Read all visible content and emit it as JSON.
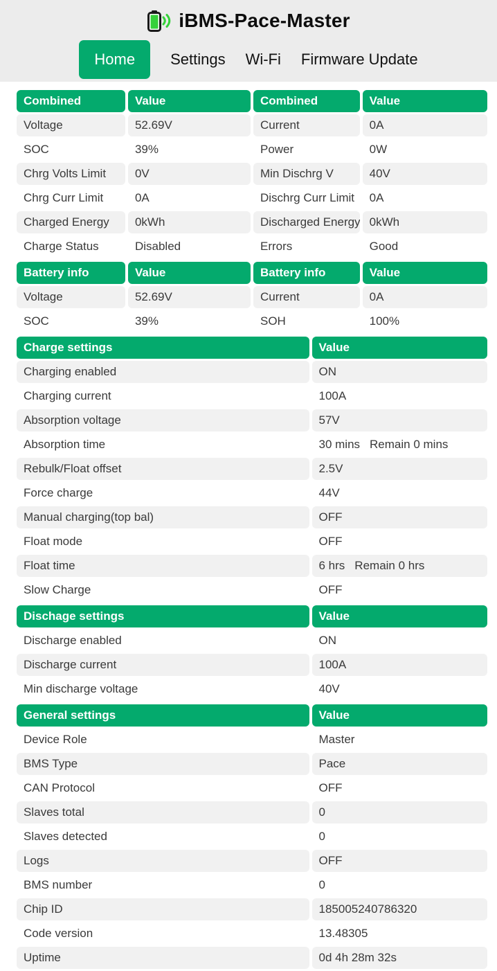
{
  "header": {
    "title": "iBMS-Pace-Master",
    "nav": [
      {
        "label": "Home",
        "active": true
      },
      {
        "label": "Settings",
        "active": false
      },
      {
        "label": "Wi-Fi",
        "active": false
      },
      {
        "label": "Firmware Update",
        "active": false
      }
    ]
  },
  "colors": {
    "accent_green": "#04aa6d",
    "good_text_green": "#1d9e3d",
    "header_background": "#ececec",
    "row_stripe_gray": "#f1f1f1",
    "battery_icon_green": "#35d13a"
  },
  "tables": [
    {
      "type": "four-col",
      "stripe_start": "gray",
      "headers": [
        "Combined",
        "Value",
        "Combined",
        "Value"
      ],
      "rows": [
        {
          "label1": "Voltage",
          "value1": "52.69V",
          "label2": "Current",
          "value2": "0A"
        },
        {
          "label1": "SOC",
          "value1": "39%",
          "label2": "Power",
          "value2": "0W"
        },
        {
          "label1": "Chrg Volts Limit",
          "value1": "0V",
          "label2": "Min Dischrg V",
          "value2": "40V"
        },
        {
          "label1": "Chrg Curr Limit",
          "value1": "0A",
          "label2": "Dischrg Curr Limit",
          "value2": "0A"
        },
        {
          "label1": "Charged Energy",
          "value1": "0kWh",
          "label2": "Discharged Energy",
          "value2": "0kWh"
        },
        {
          "label1": "Charge Status",
          "value1": "Disabled",
          "label2": "Errors",
          "value2": "Good",
          "value2_color": "good"
        }
      ]
    },
    {
      "type": "four-col",
      "stripe_start": "gray",
      "headers": [
        "Battery info",
        "Value",
        "Battery info",
        "Value"
      ],
      "rows": [
        {
          "label1": "Voltage",
          "value1": "52.69V",
          "label2": "Current",
          "value2": "0A"
        },
        {
          "label1": "SOC",
          "value1": "39%",
          "label2": "SOH",
          "value2": "100%"
        }
      ]
    },
    {
      "type": "two-col",
      "stripe_start": "gray",
      "headers": [
        "Charge settings",
        "Value"
      ],
      "rows": [
        {
          "label": "Charging enabled",
          "value": "ON"
        },
        {
          "label": "Charging current",
          "value": "100A"
        },
        {
          "label": "Absorption voltage",
          "value": "57V"
        },
        {
          "label": "Absorption time",
          "value": "30 mins",
          "note": "Remain 0 mins"
        },
        {
          "label": "Rebulk/Float offset",
          "value": "2.5V"
        },
        {
          "label": "Force charge",
          "value": "44V"
        },
        {
          "label": "Manual charging(top bal)",
          "value": "OFF"
        },
        {
          "label": "Float mode",
          "value": "OFF"
        },
        {
          "label": "Float time",
          "value": "6 hrs",
          "note": "Remain 0 hrs"
        },
        {
          "label": "Slow Charge",
          "value": "OFF"
        }
      ]
    },
    {
      "type": "two-col",
      "stripe_start": "white",
      "headers": [
        "Dischage settings",
        "Value"
      ],
      "rows": [
        {
          "label": "Discharge enabled",
          "value": "ON"
        },
        {
          "label": "Discharge current",
          "value": "100A"
        },
        {
          "label": "Min discharge voltage",
          "value": "40V"
        }
      ]
    },
    {
      "type": "two-col",
      "stripe_start": "white",
      "headers": [
        "General settings",
        "Value"
      ],
      "rows": [
        {
          "label": "Device Role",
          "value": "Master"
        },
        {
          "label": "BMS Type",
          "value": "Pace"
        },
        {
          "label": "CAN Protocol",
          "value": "OFF"
        },
        {
          "label": "Slaves total",
          "value": "0"
        },
        {
          "label": "Slaves detected",
          "value": "0"
        },
        {
          "label": "Logs",
          "value": "OFF"
        },
        {
          "label": "BMS number",
          "value": "0"
        },
        {
          "label": "Chip ID",
          "value": "185005240786320"
        },
        {
          "label": "Code version",
          "value": "13.48305"
        },
        {
          "label": "Uptime",
          "value": "0d 4h 28m 32s"
        }
      ]
    }
  ]
}
